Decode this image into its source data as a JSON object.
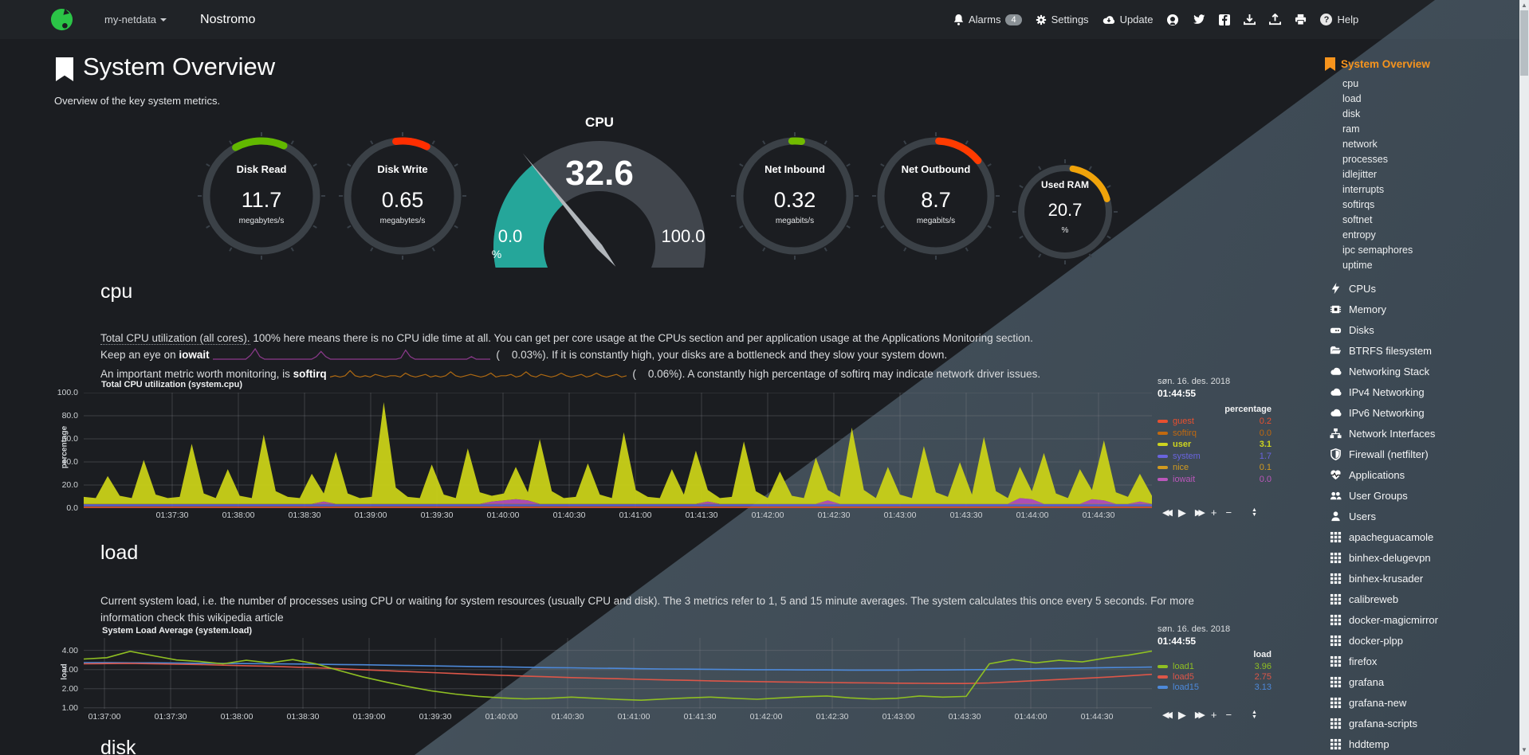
{
  "navbar": {
    "brand_dropdown": "my-netdata",
    "hostname": "Nostromo",
    "alarms_label": "Alarms",
    "alarms_count": "4",
    "settings_label": "Settings",
    "update_label": "Update",
    "help_label": "Help",
    "icon_buttons": [
      "github-icon",
      "twitter-icon",
      "facebook-icon",
      "download-icon",
      "upload-icon",
      "print-icon"
    ]
  },
  "page": {
    "title": "System Overview",
    "subtitle": "Overview of the key system metrics."
  },
  "gauges": {
    "cpu": {
      "title": "CPU",
      "value": "32.6",
      "min": "0.0",
      "max": "100.0",
      "unit": "%",
      "percent": 32.6,
      "dial_color": "#41464d",
      "fill_color": "#25a69a",
      "needle_color": "#b2b7bc"
    },
    "items": [
      {
        "title": "Disk Read",
        "value": "11.7",
        "unit": "megabytes/s",
        "arc_color": "#62b800",
        "arc_from": -28,
        "arc_to": 24,
        "small": false
      },
      {
        "title": "Disk Write",
        "value": "0.65",
        "unit": "megabytes/s",
        "arc_color": "#ff2e00",
        "arc_from": -7,
        "arc_to": 26,
        "small": false
      },
      {
        "title": "Net Inbound",
        "value": "0.32",
        "unit": "megabits/s",
        "arc_color": "#72bb00",
        "arc_from": -3,
        "arc_to": 7,
        "small": false
      },
      {
        "title": "Net Outbound",
        "value": "8.7",
        "unit": "megabits/s",
        "arc_color": "#ff3b00",
        "arc_from": 3,
        "arc_to": 50,
        "small": false
      },
      {
        "title": "Used RAM",
        "value": "20.7",
        "unit": "%",
        "arc_color": "#f0a30a",
        "arc_from": 10,
        "arc_to": 73,
        "small": true
      }
    ]
  },
  "cpu_section": {
    "heading": "cpu",
    "desc1_dotted": "Total CPU utilization (all cores).",
    "desc1_rest": " 100% here means there is no CPU idle time at all. You can get per core usage at the CPUs section and per application usage at the Applications Monitoring section.",
    "desc2_pre": "Keep an eye on ",
    "desc2_bold": "iowait",
    "desc2_post": " (    0.03%). If it is constantly high, your disks are a bottleneck and they slow your system down.",
    "desc3_pre": "An important metric worth monitoring, is ",
    "desc3_bold": "softirq",
    "desc3_post": " (    0.06%). A constantly high percentage of softirq may indicate network driver issues."
  },
  "load_section": {
    "heading": "load",
    "desc_line1": "Current system load, i.e. the number of processes using CPU or waiting for system resources (usually CPU and disk). The 3 metrics refer to 1, 5 and 15 minute averages. The system calculates this once every 5 seconds. For more",
    "desc_line2": "information check this wikipedia article"
  },
  "disk_section": {
    "heading": "disk"
  },
  "sidebar": {
    "active": "System Overview",
    "sub_items": [
      "cpu",
      "load",
      "disk",
      "ram",
      "network",
      "processes",
      "idlejitter",
      "interrupts",
      "softirqs",
      "softnet",
      "entropy",
      "ipc semaphores",
      "uptime"
    ],
    "sections": [
      {
        "icon": "bolt-icon",
        "label": "CPUs"
      },
      {
        "icon": "microchip-icon",
        "label": "Memory"
      },
      {
        "icon": "hdd-icon",
        "label": "Disks"
      },
      {
        "icon": "folder-icon",
        "label": "BTRFS filesystem"
      },
      {
        "icon": "cloud-icon",
        "label": "Networking Stack"
      },
      {
        "icon": "cloud-icon",
        "label": "IPv4 Networking"
      },
      {
        "icon": "cloud-icon",
        "label": "IPv6 Networking"
      },
      {
        "icon": "sitemap-icon",
        "label": "Network Interfaces"
      },
      {
        "icon": "shield-icon",
        "label": "Firewall (netfilter)"
      },
      {
        "icon": "heartbeat-icon",
        "label": "Applications"
      },
      {
        "icon": "users-icon",
        "label": "User Groups"
      },
      {
        "icon": "user-icon",
        "label": "Users"
      },
      {
        "icon": "grid-icon",
        "label": "apacheguacamole"
      },
      {
        "icon": "grid-icon",
        "label": "binhex-delugevpn"
      },
      {
        "icon": "grid-icon",
        "label": "binhex-krusader"
      },
      {
        "icon": "grid-icon",
        "label": "calibreweb"
      },
      {
        "icon": "grid-icon",
        "label": "docker-magicmirror"
      },
      {
        "icon": "grid-icon",
        "label": "docker-plpp"
      },
      {
        "icon": "grid-icon",
        "label": "firefox"
      },
      {
        "icon": "grid-icon",
        "label": "grafana"
      },
      {
        "icon": "grid-icon",
        "label": "grafana-new"
      },
      {
        "icon": "grid-icon",
        "label": "grafana-scripts"
      },
      {
        "icon": "grid-icon",
        "label": "hddtemp"
      }
    ]
  },
  "chart_data": [
    {
      "id": "cpu",
      "type": "area",
      "title": "Total CPU utilization (system.cpu)",
      "ylabel": "percentage",
      "ylim": [
        0,
        100
      ],
      "grid": true,
      "legend_position": "right",
      "yticks": [
        {
          "label": "100.0",
          "v": 100
        },
        {
          "label": "80.0",
          "v": 80
        },
        {
          "label": "60.0",
          "v": 60
        },
        {
          "label": "40.0",
          "v": 40
        },
        {
          "label": "20.0",
          "v": 20
        },
        {
          "label": "0.0",
          "v": 0
        }
      ],
      "xticks": [
        "01:37:30",
        "01:38:00",
        "01:38:30",
        "01:39:00",
        "01:39:30",
        "01:40:00",
        "01:40:30",
        "01:41:00",
        "01:41:30",
        "01:42:00",
        "01:42:30",
        "01:43:00",
        "01:43:30",
        "01:44:00",
        "01:44:30"
      ],
      "legend_date": "søn. 16. des. 2018",
      "legend_time": "01:44:55",
      "legend_unit": "percentage",
      "legend": [
        {
          "name": "guest",
          "color": "#e8502f",
          "value": "0.2",
          "bold": false
        },
        {
          "name": "softirq",
          "color": "#c1690f",
          "value": "0.0",
          "bold": false
        },
        {
          "name": "user",
          "color": "#cdd41f",
          "value": "3.1",
          "bold": true
        },
        {
          "name": "system",
          "color": "#6964dd",
          "value": "1.7",
          "bold": false
        },
        {
          "name": "nice",
          "color": "#d19a1f",
          "value": "0.1",
          "bold": false
        },
        {
          "name": "iowait",
          "color": "#bb57bb",
          "value": "0.0",
          "bold": false
        }
      ],
      "stack": [
        {
          "name": "guest",
          "color": "#d94731",
          "const": 1.0
        },
        {
          "name": "softirq",
          "color": "#c1690f",
          "const": 0.5
        },
        {
          "name": "system",
          "color": "#5a5fd8",
          "const": 1.9
        },
        {
          "name": "nice",
          "color": "#d19a1f",
          "const": 0.3
        },
        {
          "name": "iowait",
          "color": "#b44fb8",
          "data": [
            0,
            0,
            0,
            0,
            0,
            0,
            0,
            0,
            0,
            0,
            0,
            0,
            0,
            0,
            0,
            0,
            0,
            0,
            0,
            0,
            2,
            0,
            0,
            0,
            0,
            0,
            0,
            0,
            0,
            0,
            0,
            0,
            0,
            0,
            2,
            3,
            4,
            3,
            0,
            0,
            0,
            0,
            0,
            0,
            0,
            0,
            0,
            0,
            0,
            0,
            0,
            0,
            2,
            0,
            0,
            0,
            0,
            0,
            0,
            0,
            0,
            0,
            3,
            0,
            0,
            0,
            0,
            0,
            0,
            0,
            0,
            0,
            0,
            0,
            0,
            0,
            0,
            0,
            5,
            4,
            0,
            0,
            0,
            0,
            4,
            3,
            0,
            0,
            2,
            0
          ]
        },
        {
          "name": "user",
          "color": "#c9d118",
          "data": [
            6,
            5,
            24,
            7,
            5,
            38,
            8,
            5,
            6,
            52,
            9,
            5,
            30,
            7,
            5,
            60,
            11,
            6,
            5,
            26,
            7,
            45,
            9,
            5,
            6,
            88,
            14,
            6,
            5,
            34,
            8,
            5,
            48,
            10,
            5,
            6,
            28,
            7,
            56,
            11,
            5,
            6,
            35,
            8,
            5,
            62,
            12,
            6,
            5,
            30,
            8,
            46,
            10,
            5,
            6,
            54,
            11,
            5,
            28,
            7,
            5,
            40,
            9,
            6,
            66,
            12,
            5,
            32,
            8,
            5,
            50,
            10,
            6,
            36,
            8,
            58,
            11,
            5,
            27,
            7,
            44,
            9,
            5,
            30,
            8,
            52,
            10,
            6,
            24,
            7
          ]
        }
      ]
    },
    {
      "id": "load",
      "type": "line",
      "title": "System Load Average (system.load)",
      "ylabel": "load",
      "ylim": [
        0.95,
        4.65
      ],
      "grid": true,
      "legend_position": "right",
      "yticks": [
        {
          "label": "4.00",
          "v": 4
        },
        {
          "label": "3.00",
          "v": 3
        },
        {
          "label": "2.00",
          "v": 2
        },
        {
          "label": "1.00",
          "v": 1
        }
      ],
      "xticks": [
        "01:37:00",
        "01:37:30",
        "01:38:00",
        "01:38:30",
        "01:39:00",
        "01:39:30",
        "01:40:00",
        "01:40:30",
        "01:41:00",
        "01:41:30",
        "01:42:00",
        "01:42:30",
        "01:43:00",
        "01:43:30",
        "01:44:00",
        "01:44:30"
      ],
      "legend_date": "søn. 16. des. 2018",
      "legend_time": "01:44:55",
      "legend_unit": "load",
      "legend": [
        {
          "name": "load1",
          "color": "#8fbf22",
          "value": "3.96",
          "bold": false
        },
        {
          "name": "load5",
          "color": "#dd5648",
          "value": "2.75",
          "bold": false
        },
        {
          "name": "load15",
          "color": "#4d89d9",
          "value": "3.13",
          "bold": false
        }
      ],
      "series": [
        {
          "name": "load15",
          "color": "#4d89d9",
          "data": [
            3.36,
            3.36,
            3.35,
            3.35,
            3.34,
            3.33,
            3.32,
            3.31,
            3.3,
            3.29,
            3.28,
            3.26,
            3.25,
            3.23,
            3.21,
            3.19,
            3.17,
            3.15,
            3.14,
            3.12,
            3.1,
            3.09,
            3.07,
            3.06,
            3.04,
            3.03,
            3.02,
            3.01,
            3.0,
            2.99,
            2.99,
            2.98,
            2.98,
            2.97,
            2.97,
            2.97,
            2.98,
            2.98,
            2.99,
            3.0,
            3.02,
            3.04,
            3.06,
            3.08,
            3.1,
            3.11,
            3.13
          ]
        },
        {
          "name": "load5",
          "color": "#dd5648",
          "data": [
            3.3,
            3.31,
            3.32,
            3.3,
            3.28,
            3.26,
            3.23,
            3.2,
            3.17,
            3.13,
            3.09,
            3.04,
            2.99,
            2.94,
            2.89,
            2.84,
            2.79,
            2.74,
            2.7,
            2.66,
            2.62,
            2.58,
            2.55,
            2.52,
            2.49,
            2.46,
            2.44,
            2.41,
            2.39,
            2.37,
            2.35,
            2.34,
            2.32,
            2.31,
            2.3,
            2.29,
            2.28,
            2.27,
            2.27,
            2.3,
            2.36,
            2.42,
            2.48,
            2.54,
            2.6,
            2.67,
            2.75
          ]
        },
        {
          "name": "load1",
          "color": "#8fbf22",
          "data": [
            3.55,
            3.62,
            3.95,
            3.72,
            3.5,
            3.42,
            3.3,
            3.48,
            3.35,
            3.52,
            3.3,
            2.95,
            2.62,
            2.35,
            2.1,
            1.88,
            1.72,
            1.6,
            1.52,
            1.47,
            1.5,
            1.56,
            1.5,
            1.44,
            1.4,
            1.46,
            1.52,
            1.56,
            1.5,
            1.45,
            1.52,
            1.58,
            1.62,
            1.52,
            1.46,
            1.5,
            1.62,
            1.56,
            1.6,
            3.3,
            3.52,
            3.35,
            3.48,
            3.4,
            3.6,
            3.75,
            3.96
          ]
        }
      ]
    },
    {
      "id": "iowait-spark",
      "type": "line",
      "title": "iowait inline sparkline",
      "color": "#8d3a8d",
      "max": 8,
      "data": [
        0,
        0,
        0,
        0,
        0,
        0,
        0,
        0,
        3,
        8,
        2,
        0,
        0,
        0,
        0,
        0,
        0,
        0,
        0,
        0,
        0,
        0,
        2,
        6,
        2,
        0,
        0,
        0,
        0,
        0,
        0,
        0,
        0,
        0,
        0,
        0,
        0,
        0,
        0,
        0,
        1,
        7,
        2,
        0,
        0,
        0,
        0,
        0,
        0,
        0,
        0,
        0,
        0,
        0,
        0,
        2,
        0,
        0,
        0,
        0
      ]
    },
    {
      "id": "softirq-spark",
      "type": "line",
      "title": "softirq inline sparkline",
      "color": "#b06a12",
      "max": 8,
      "data": [
        1,
        2,
        1,
        2,
        6,
        2,
        1,
        2,
        1,
        3,
        2,
        1,
        2,
        2,
        1,
        4,
        2,
        1,
        2,
        3,
        1,
        2,
        1,
        2,
        5,
        2,
        1,
        2,
        3,
        2,
        1,
        2,
        4,
        1,
        2,
        2,
        3,
        1,
        2,
        5,
        2,
        1,
        3,
        2,
        1,
        2,
        4,
        2,
        1,
        2,
        3,
        1,
        2,
        4,
        2,
        1,
        2,
        3,
        1,
        2
      ]
    }
  ]
}
